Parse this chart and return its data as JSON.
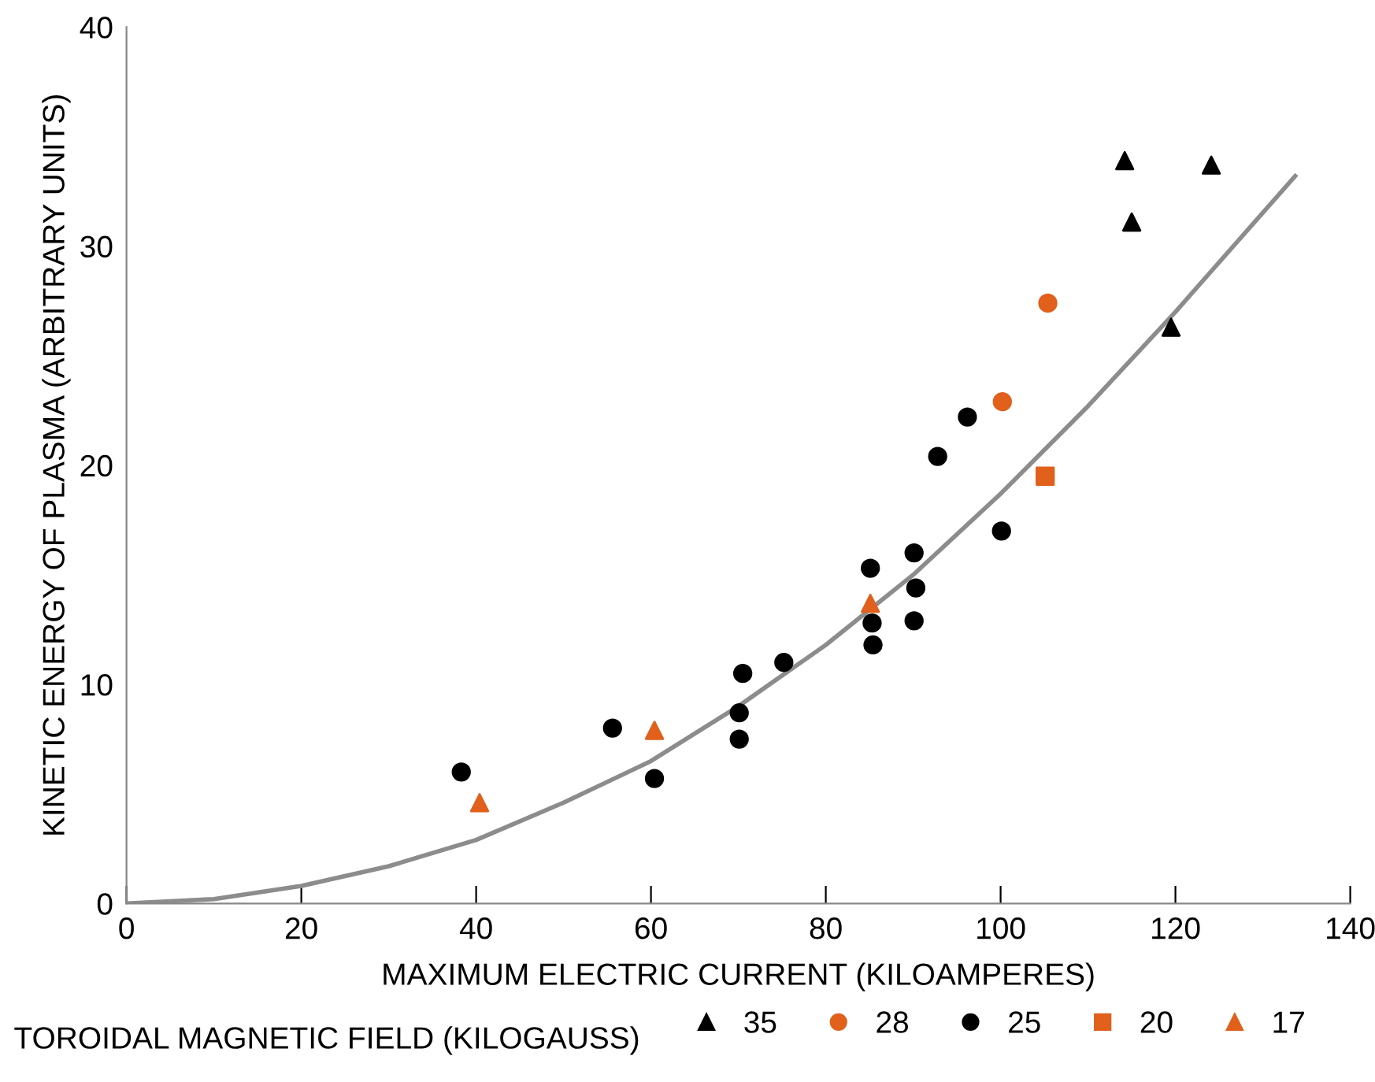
{
  "chart_data": {
    "type": "scatter",
    "xlabel": "MAXIMUM ELECTRIC CURRENT (KILOAMPERES)",
    "ylabel": "KINETIC ENERGY OF PLASMA (ARBITRARY UNITS)",
    "legend_title": "TOROIDAL MAGNETIC FIELD (KILOGAUSS)",
    "legend": "bottom",
    "grid": false,
    "xlim": [
      0,
      140
    ],
    "ylim": [
      0,
      40
    ],
    "xticks": [
      0,
      20,
      40,
      60,
      80,
      100,
      120,
      140
    ],
    "yticks": [
      0,
      10,
      20,
      30,
      40
    ],
    "series": [
      {
        "name": "35",
        "color": "#000000",
        "marker": "triangle",
        "x": [
          114.2,
          124.1,
          115.0,
          119.5
        ],
        "values": [
          33.9,
          33.7,
          31.1,
          26.3
        ]
      },
      {
        "name": "28",
        "color": "#e0601c",
        "marker": "circle",
        "x": [
          105.4,
          100.2
        ],
        "values": [
          27.4,
          22.9
        ]
      },
      {
        "name": "25",
        "color": "#000000",
        "marker": "circle",
        "x": [
          92.8,
          96.2,
          38.3,
          55.6,
          60.4,
          70.5,
          70.1,
          70.1,
          75.2,
          85.1,
          85.3,
          85.4,
          90.1,
          90.3,
          90.1,
          100.1
        ],
        "values": [
          20.4,
          22.2,
          6.0,
          8.0,
          5.7,
          10.5,
          8.7,
          7.5,
          11.0,
          15.3,
          12.8,
          11.8,
          16.0,
          14.4,
          12.9,
          17.0
        ]
      },
      {
        "name": "20",
        "color": "#e0601c",
        "marker": "square",
        "x": [
          105.1
        ],
        "values": [
          19.5
        ]
      },
      {
        "name": "17",
        "color": "#e0601c",
        "marker": "triangle",
        "x": [
          40.4,
          60.4,
          85.1
        ],
        "values": [
          4.6,
          7.9,
          13.7
        ]
      },
      {
        "type": "line",
        "color": "#8c8c8c",
        "marker": "none",
        "x": [
          0,
          10,
          20,
          30,
          40,
          50,
          60,
          70,
          80,
          90,
          100,
          110,
          120,
          133.7
        ],
        "values": [
          0,
          0.2,
          0.8,
          1.7,
          2.9,
          4.6,
          6.5,
          9.0,
          11.8,
          15.0,
          18.7,
          22.7,
          27.0,
          33.2
        ]
      }
    ]
  }
}
